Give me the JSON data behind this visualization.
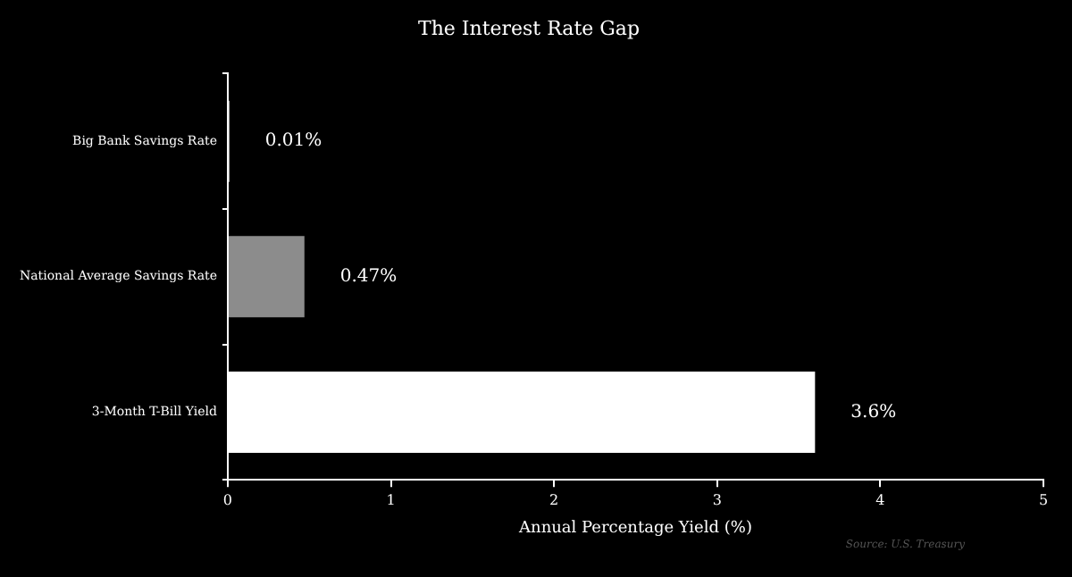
{
  "chart_data": {
    "type": "bar",
    "orientation": "horizontal",
    "title": "The Interest Rate Gap",
    "xlabel": "Annual Percentage Yield (%)",
    "categories": [
      "Big Bank Savings Rate",
      "National Average Savings Rate",
      "3-Month T-Bill Yield"
    ],
    "values": [
      0.01,
      0.47,
      3.6
    ],
    "colors": [
      "#d9d9d9",
      "#8c8c8c",
      "#ffffff"
    ],
    "value_labels": [
      "0.01%",
      "0.47%",
      "3.6%"
    ],
    "xlim": [
      0,
      5
    ],
    "xticks": [
      0,
      1,
      2,
      3,
      4,
      5
    ],
    "grid": false,
    "legend": false,
    "annotations": [
      "Source: U.S. Treasury"
    ]
  }
}
